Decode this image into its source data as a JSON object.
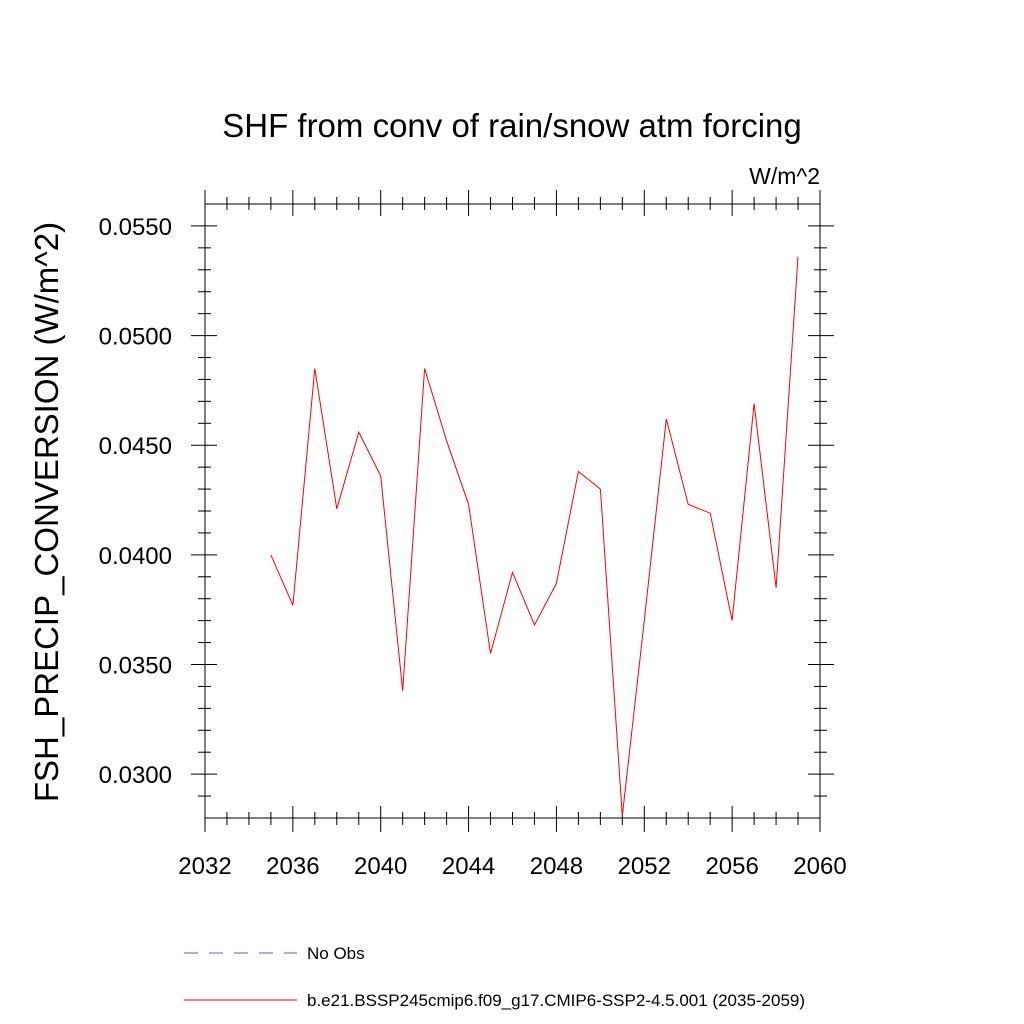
{
  "chart_data": {
    "type": "line",
    "title": "SHF from conv of rain/snow atm forcing",
    "units_label": "W/m^2",
    "ylabel": "FSH_PRECIP_CONVERSION  (W/m^2)",
    "xlabel": "",
    "xlim": [
      2032,
      2060
    ],
    "ylim": [
      0.028,
      0.056
    ],
    "x_major_ticks": [
      2032,
      2036,
      2040,
      2044,
      2048,
      2052,
      2056,
      2060
    ],
    "x_tick_labels": [
      "2032",
      "2036",
      "2040",
      "2044",
      "2048",
      "2052",
      "2056",
      "2060"
    ],
    "y_major_ticks": [
      0.03,
      0.035,
      0.04,
      0.045,
      0.05,
      0.055
    ],
    "y_tick_labels": [
      "0.0300",
      "0.0350",
      "0.0400",
      "0.0450",
      "0.0500",
      "0.0550"
    ],
    "grid": false,
    "legend_position": "bottom",
    "series": [
      {
        "name": "b.e21.BSSP245cmip6.f09_g17.CMIP6-SSP2-4.5.001 (2035-2059)",
        "color": "#ff0000",
        "style": "solid",
        "x": [
          2035,
          2036,
          2037,
          2038,
          2039,
          2040,
          2041,
          2042,
          2043,
          2044,
          2045,
          2046,
          2047,
          2048,
          2049,
          2050,
          2051,
          2052,
          2053,
          2054,
          2055,
          2056,
          2057,
          2058,
          2059
        ],
        "y": [
          0.04,
          0.0377,
          0.0485,
          0.0421,
          0.0456,
          0.0436,
          0.0338,
          0.0485,
          0.0452,
          0.0423,
          0.0355,
          0.0392,
          0.0368,
          0.0387,
          0.0438,
          0.043,
          0.0281,
          0.037,
          0.0462,
          0.0423,
          0.0419,
          0.037,
          0.0469,
          0.0385,
          0.0536
        ]
      }
    ],
    "legend": [
      {
        "label": "No Obs",
        "color": "#6a5acd",
        "style": "dashed"
      },
      {
        "label": "b.e21.BSSP245cmip6.f09_g17.CMIP6-SSP2-4.5.001 (2035-2059)",
        "color": "#ff0000",
        "style": "solid"
      }
    ]
  }
}
